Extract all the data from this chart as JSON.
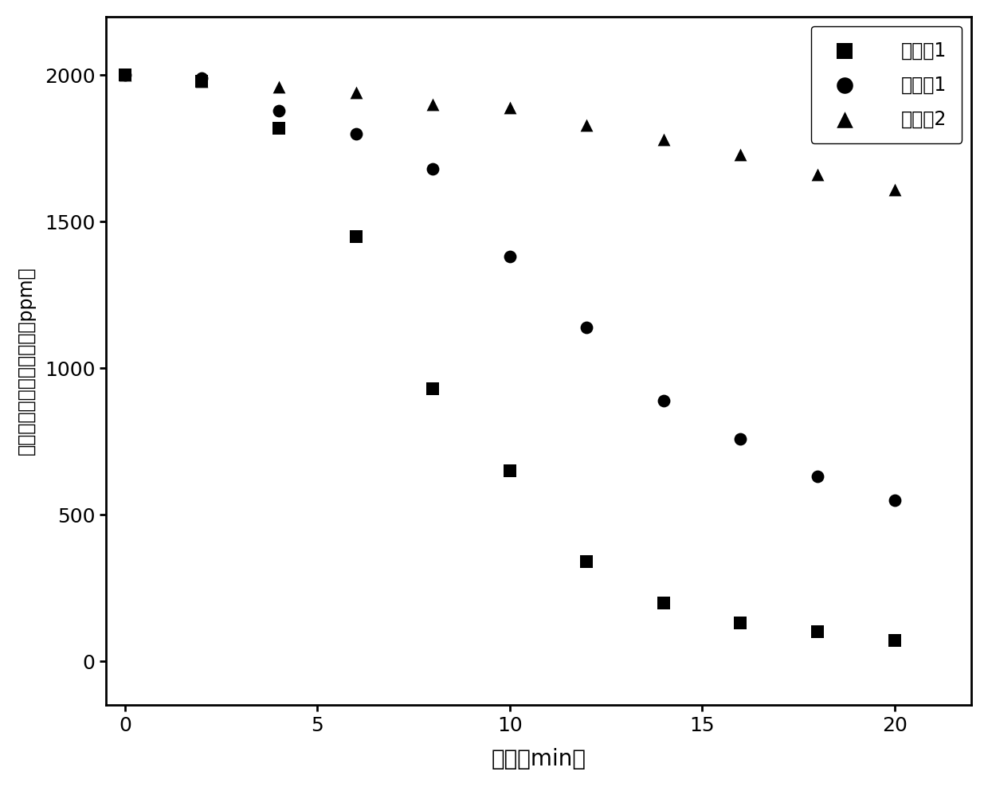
{
  "series": [
    {
      "label": "实施例1",
      "marker": "s",
      "x": [
        0,
        2,
        4,
        6,
        8,
        10,
        12,
        14,
        16,
        18,
        20
      ],
      "y": [
        2000,
        1980,
        1820,
        1450,
        930,
        650,
        340,
        200,
        130,
        100,
        70
      ]
    },
    {
      "label": "对比例1",
      "marker": "o",
      "x": [
        0,
        2,
        4,
        6,
        8,
        10,
        12,
        14,
        16,
        18,
        20
      ],
      "y": [
        2000,
        1990,
        1880,
        1800,
        1680,
        1380,
        1140,
        890,
        760,
        630,
        550
      ]
    },
    {
      "label": "对比例2",
      "marker": "^",
      "x": [
        0,
        2,
        4,
        6,
        8,
        10,
        12,
        14,
        16,
        18,
        20
      ],
      "y": [
        2000,
        1980,
        1960,
        1940,
        1900,
        1890,
        1830,
        1780,
        1730,
        1660,
        1610
      ]
    }
  ],
  "xlabel": "时间（min）",
  "ylabel": "多环芳香多环芳香烃浓度（ppm）",
  "xlim": [
    -0.5,
    22
  ],
  "ylim": [
    -150,
    2200
  ],
  "xticks": [
    0,
    5,
    10,
    15,
    20
  ],
  "yticks": [
    0,
    500,
    1000,
    1500,
    2000
  ],
  "marker_size": 130,
  "color": "black",
  "legend_loc": "upper right",
  "xlabel_fontsize": 20,
  "ylabel_fontsize": 17,
  "tick_fontsize": 18,
  "legend_fontsize": 17,
  "figure_width": 12.4,
  "figure_height": 9.88,
  "dpi": 100
}
